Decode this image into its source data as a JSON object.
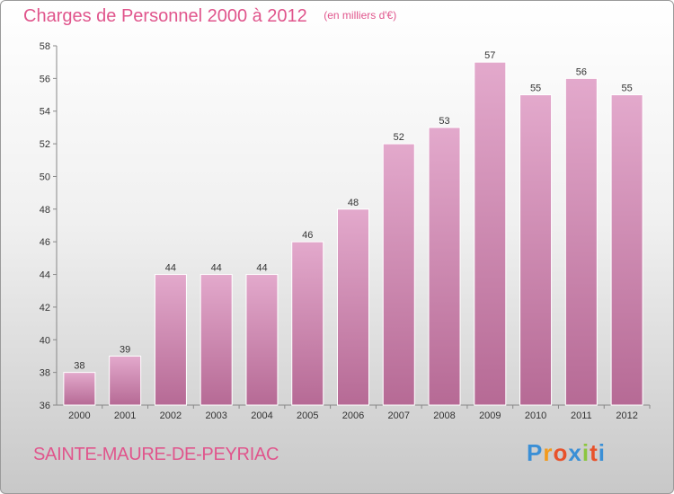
{
  "header": {
    "title": "Charges de Personnel 2000 à 2012",
    "unit": "(en milliers d'€)"
  },
  "footer": {
    "place": "SAINTE-MAURE-DE-PEYRIAC",
    "brand_letters": [
      "P",
      "r",
      "o",
      "x",
      "i",
      "t",
      "i"
    ],
    "brand_colors": [
      "#3a8fd6",
      "#f39a1b",
      "#e8522a",
      "#3a8fd6",
      "#8cc63f",
      "#e8522a",
      "#3a8fd6"
    ]
  },
  "colors": {
    "accent": "#e0558c",
    "bar_top": "#e3a9cc",
    "bar_bottom": "#b66a95"
  },
  "chart_data": {
    "type": "bar",
    "categories": [
      "2000",
      "2001",
      "2002",
      "2003",
      "2004",
      "2005",
      "2006",
      "2007",
      "2008",
      "2009",
      "2010",
      "2011",
      "2012"
    ],
    "values": [
      38,
      39,
      44,
      44,
      44,
      46,
      48,
      52,
      53,
      57,
      55,
      56,
      55
    ],
    "yticks": [
      36,
      38,
      40,
      42,
      44,
      46,
      48,
      50,
      52,
      54,
      56,
      58
    ],
    "ylim": [
      36,
      58
    ],
    "grid": false
  }
}
